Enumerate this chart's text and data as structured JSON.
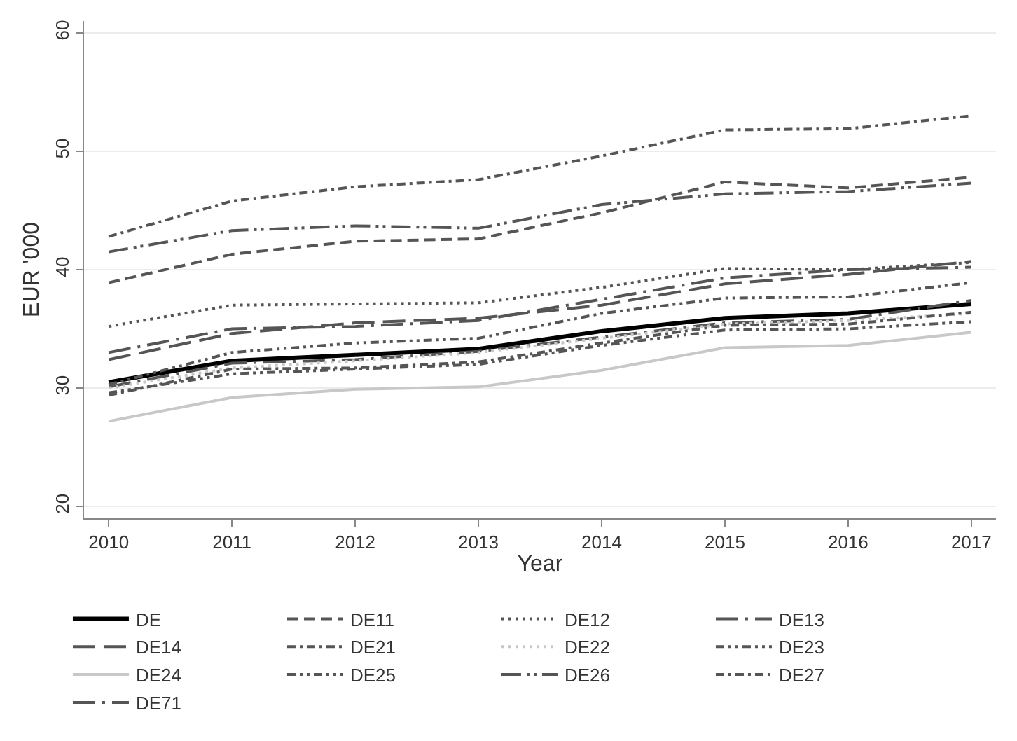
{
  "chart_data": {
    "type": "line",
    "xlabel": "Year",
    "ylabel": "EUR '000",
    "x": [
      2010,
      2011,
      2012,
      2013,
      2014,
      2015,
      2016,
      2017
    ],
    "xlim": [
      2009.8,
      2017.2
    ],
    "xticks": [
      2010,
      2011,
      2012,
      2013,
      2014,
      2015,
      2016,
      2017
    ],
    "ylim": [
      19,
      61
    ],
    "yticks": [
      20,
      30,
      40,
      50,
      60
    ],
    "grid": "y",
    "legend": "bottom",
    "series": [
      {
        "name": "DE",
        "color": "#000000",
        "line_style": "solid",
        "values": [
          30.5,
          32.3,
          32.8,
          33.3,
          34.8,
          35.9,
          36.3,
          37.1
        ]
      },
      {
        "name": "DE11",
        "color": "#555555",
        "line_style": "dashed",
        "values": [
          38.9,
          41.3,
          42.4,
          42.6,
          44.8,
          47.4,
          46.9,
          47.8
        ]
      },
      {
        "name": "DE12",
        "color": "#555555",
        "line_style": "dotted",
        "values": [
          35.2,
          37.0,
          37.1,
          37.2,
          38.5,
          40.1,
          40.0,
          40.6
        ]
      },
      {
        "name": "DE13",
        "color": "#555555",
        "line_style": "longdashdot",
        "values": [
          30.1,
          32.1,
          32.4,
          33.1,
          34.3,
          35.5,
          35.8,
          37.4
        ]
      },
      {
        "name": "DE14",
        "color": "#555555",
        "line_style": "longdash",
        "values": [
          32.4,
          34.6,
          35.5,
          35.9,
          37.0,
          38.8,
          39.6,
          40.7
        ]
      },
      {
        "name": "DE21",
        "color": "#555555",
        "line_style": "dashdot",
        "values": [
          42.8,
          45.8,
          47.0,
          47.6,
          49.6,
          51.8,
          51.9,
          53.0
        ]
      },
      {
        "name": "DE22",
        "color": "#c8c8c8",
        "line_style": "dotted",
        "values": [
          30.0,
          31.7,
          32.3,
          33.0,
          34.2,
          35.4,
          35.7,
          36.3
        ]
      },
      {
        "name": "DE23",
        "color": "#555555",
        "line_style": "dashdotdot",
        "values": [
          30.3,
          33.0,
          33.8,
          34.2,
          36.3,
          37.6,
          37.7,
          38.9
        ]
      },
      {
        "name": "DE24",
        "color": "#c8c8c8",
        "line_style": "solid",
        "values": [
          27.2,
          29.2,
          29.9,
          30.1,
          31.5,
          33.4,
          33.6,
          34.7
        ]
      },
      {
        "name": "DE25",
        "color": "#555555",
        "line_style": "dashdotdot",
        "values": [
          29.6,
          31.2,
          31.6,
          32.0,
          33.6,
          34.9,
          35.0,
          35.6
        ]
      },
      {
        "name": "DE26",
        "color": "#555555",
        "line_style": "longdashdotdot",
        "values": [
          41.5,
          43.3,
          43.7,
          43.5,
          45.5,
          46.4,
          46.6,
          47.3
        ]
      },
      {
        "name": "DE27",
        "color": "#555555",
        "line_style": "dashdot",
        "values": [
          29.4,
          31.6,
          31.7,
          32.2,
          33.8,
          35.3,
          35.4,
          36.4
        ]
      },
      {
        "name": "DE71",
        "color": "#555555",
        "line_style": "longdashdot",
        "values": [
          33.0,
          35.0,
          35.2,
          35.7,
          37.5,
          39.3,
          40.0,
          40.2
        ]
      }
    ]
  }
}
